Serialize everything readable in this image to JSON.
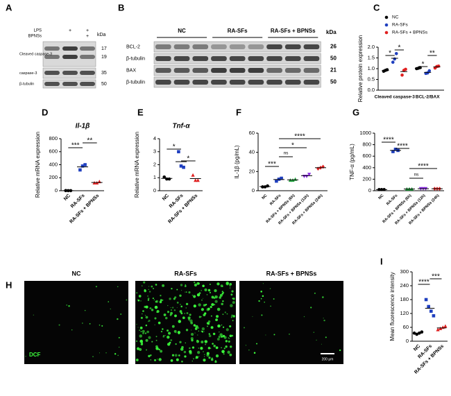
{
  "panel_labels": [
    "A",
    "B",
    "C",
    "D",
    "E",
    "F",
    "G",
    "H",
    "I"
  ],
  "blot_a": {
    "treatments": [
      {
        "name": "LPS",
        "marks": [
          "+",
          "+"
        ]
      },
      {
        "name": "BPNSs",
        "marks": [
          "+"
        ]
      }
    ],
    "kda_label": "kDa",
    "rows": [
      {
        "name": "Cleaved caspase-3",
        "kda": [
          17,
          19
        ]
      },
      {
        "name": "caspase-3",
        "kda": [
          35
        ]
      },
      {
        "name": "β-tubulin",
        "kda": [
          50
        ]
      }
    ]
  },
  "blot_b": {
    "groups": [
      "NC",
      "RA-SFs",
      "RA-SFs + BPNSs"
    ],
    "kda_label": "kDa",
    "rows": [
      {
        "name": "BCL-2",
        "kda": [
          26
        ]
      },
      {
        "name": "β-tubulin",
        "kda": [
          50
        ]
      },
      {
        "name": "BAX",
        "kda": [
          21
        ]
      },
      {
        "name": "β-tubulin",
        "kda": [
          50
        ]
      }
    ]
  },
  "images_h": {
    "groups": [
      "NC",
      "RA-SFs",
      "RA-SFs + BPNSs"
    ],
    "stain": "DCF",
    "scale_bar": "200 μm"
  },
  "chart_data": [
    {
      "type": "grouped_dot",
      "ylabel": "Relative protein expression",
      "categories": [
        "Cleaved caspase-3",
        "BCL-2/BAX"
      ],
      "series": [
        {
          "name": "NC",
          "color": "#000000",
          "marker": "circle",
          "values": [
            [
              0.88,
              0.92,
              0.95
            ],
            [
              1.0,
              1.02,
              1.05
            ]
          ]
        },
        {
          "name": "RA-SFs",
          "color": "#1f3fbf",
          "marker": "circle",
          "values": [
            [
              1.3,
              1.45,
              1.7
            ],
            [
              0.78,
              0.8,
              0.9
            ]
          ]
        },
        {
          "name": "RA-SFs + BPNSs",
          "color": "#e02020",
          "marker": "circle",
          "values": [
            [
              0.7,
              0.92,
              0.97
            ],
            [
              1.03,
              1.1,
              1.12
            ]
          ]
        }
      ],
      "ylim": [
        0,
        2
      ],
      "yticks": [
        {
          "value": 0,
          "label": "0.0"
        },
        {
          "value": 0.5,
          "label": "0.5"
        },
        {
          "value": 1,
          "label": "1.0"
        },
        {
          "value": 1.5,
          "label": "1.5"
        },
        {
          "value": 2,
          "label": "2.0"
        }
      ],
      "significance": [
        "*",
        "*",
        "*",
        "**"
      ]
    },
    {
      "type": "dot",
      "title": "Il-1β",
      "ylabel": "Relative mRNA expression",
      "categories": [
        "NC",
        "RA-SFs",
        "RA-SFs + BPNSs"
      ],
      "colors": [
        "#000000",
        "#1f3fbf",
        "#e02020"
      ],
      "markers": [
        "circle",
        "square",
        "triangle"
      ],
      "values": [
        [
          2,
          1,
          1
        ],
        [
          320,
          380,
          400
        ],
        [
          120,
          120,
          140
        ]
      ],
      "ylim": [
        0,
        800
      ],
      "yticks": [
        0,
        200,
        400,
        600,
        800
      ],
      "significance": [
        "***",
        "**"
      ]
    },
    {
      "type": "dot",
      "title": "Tnf-α",
      "ylabel": "Relative mRNA expression",
      "categories": [
        "NC",
        "RA-SFs",
        "RA-SFs + BPNSs"
      ],
      "colors": [
        "#000000",
        "#1f3fbf",
        "#e02020"
      ],
      "markers": [
        "circle",
        "square",
        "triangle"
      ],
      "values": [
        [
          1.05,
          0.9,
          0.9
        ],
        [
          3.0,
          1.9,
          1.8
        ],
        [
          1.2,
          0.8,
          0.8
        ]
      ],
      "ylim": [
        0,
        4
      ],
      "yticks": [
        0,
        1,
        2,
        3,
        4
      ],
      "significance": [
        "*",
        "*"
      ]
    },
    {
      "type": "dot",
      "ylabel": "IL-1β (pg/mL)",
      "categories": [
        "NC",
        "RA-SFs",
        "RA-SFs + BPNSs (6h)",
        "RA-SFs + BPNSs (12h)",
        "RA-SFs + BPNSs (24h)"
      ],
      "colors": [
        "#000000",
        "#1f3fbf",
        "#1e9e3a",
        "#8a2be2",
        "#e02020"
      ],
      "markers": [
        "circle",
        "square",
        "triangle",
        "tridown",
        "diamond"
      ],
      "values": [
        [
          4,
          4,
          5
        ],
        [
          10,
          12,
          13
        ],
        [
          11,
          11,
          12
        ],
        [
          15,
          15,
          17
        ],
        [
          23,
          24,
          25
        ]
      ],
      "ylim": [
        0,
        60
      ],
      "yticks": [
        0,
        20,
        40,
        60
      ],
      "significance": [
        "***",
        "ns",
        "*",
        "****"
      ]
    },
    {
      "type": "dot",
      "ylabel": "TNF-α (pg/mL)",
      "categories": [
        "NC",
        "RA-SFs",
        "RA-SFs + BPNSs (6h)",
        "RA-SFs + BPNSs (12h)",
        "RA-SFs + BPNSs (24h)"
      ],
      "colors": [
        "#000000",
        "#1f3fbf",
        "#1e9e3a",
        "#8a2be2",
        "#e02020"
      ],
      "markers": [
        "circle",
        "square",
        "triangle",
        "tridown",
        "diamond"
      ],
      "values": [
        [
          20,
          20,
          20
        ],
        [
          680,
          720,
          700
        ],
        [
          30,
          30,
          30
        ],
        [
          35,
          35,
          35
        ],
        [
          35,
          35,
          35
        ]
      ],
      "ylim": [
        0,
        1000
      ],
      "yticks": [
        0,
        200,
        400,
        600,
        800,
        1000
      ],
      "significance": [
        "****",
        "****",
        "ns",
        "****"
      ]
    },
    {
      "type": "dot",
      "ylabel": "Mean fluorescence intensity",
      "categories": [
        "NC",
        "RA-SFs",
        "RA-SFs + BPNSs"
      ],
      "colors": [
        "#000000",
        "#1f3fbf",
        "#e02020"
      ],
      "markers": [
        "circle",
        "square",
        "triangle"
      ],
      "values": [
        [
          35,
          30,
          35,
          40
        ],
        [
          180,
          150,
          130,
          110
        ],
        [
          50,
          55,
          60,
          65
        ]
      ],
      "ylim": [
        0,
        300
      ],
      "yticks": [
        0,
        60,
        120,
        180,
        240,
        300
      ],
      "significance": [
        "****",
        "***"
      ]
    }
  ]
}
